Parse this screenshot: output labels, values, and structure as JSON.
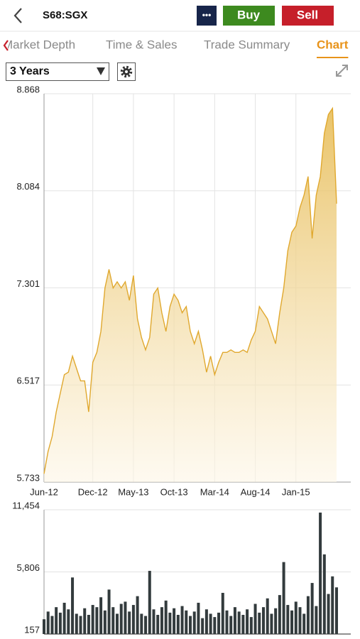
{
  "header": {
    "symbol": "S68:SGX",
    "more": "•••",
    "buy": "Buy",
    "sell": "Sell"
  },
  "tabs": [
    "Market Depth",
    "Time & Sales",
    "Trade Summary",
    "Chart"
  ],
  "active_tab": 3,
  "period": "3 Years",
  "chart_data": [
    {
      "type": "area",
      "series": [
        {
          "color": "#e0a82e",
          "values": [
            5.8,
            5.98,
            6.1,
            6.3,
            6.45,
            6.6,
            6.62,
            6.75,
            6.65,
            6.55,
            6.55,
            6.3,
            6.7,
            6.78,
            6.95,
            7.3,
            7.45,
            7.3,
            7.35,
            7.3,
            7.35,
            7.2,
            7.4,
            7.05,
            6.9,
            6.8,
            6.9,
            7.25,
            7.3,
            7.1,
            6.95,
            7.15,
            7.25,
            7.2,
            7.1,
            7.15,
            6.95,
            6.85,
            6.95,
            6.8,
            6.62,
            6.75,
            6.6,
            6.7,
            6.78,
            6.78,
            6.8,
            6.78,
            6.78,
            6.8,
            6.78,
            6.88,
            6.95,
            7.15,
            7.1,
            7.05,
            6.95,
            6.85,
            7.1,
            7.3,
            7.6,
            7.75,
            7.8,
            7.95,
            8.05,
            8.2,
            7.7,
            8.05,
            8.2,
            8.55,
            8.7,
            8.75,
            7.98
          ]
        }
      ],
      "xlim": [
        0,
        75.5
      ],
      "xticks": [
        {
          "value": 0,
          "label": "Jun-12"
        },
        {
          "value": 12,
          "label": "Dec-12"
        },
        {
          "value": 22,
          "label": "May-13"
        },
        {
          "value": 32,
          "label": "Oct-13"
        },
        {
          "value": 42,
          "label": "Mar-14"
        },
        {
          "value": 52,
          "label": "Aug-14"
        },
        {
          "value": 62,
          "label": "Jan-15"
        }
      ],
      "ylim": [
        5.733,
        8.868
      ],
      "yticks": [
        8.868,
        8.084,
        7.301,
        6.517,
        5.733
      ],
      "grid": true
    },
    {
      "type": "bar",
      "color": "#333b3d",
      "values": [
        1500,
        2200,
        1800,
        2600,
        2100,
        3000,
        2400,
        5300,
        2000,
        1800,
        2500,
        1900,
        2800,
        2600,
        3500,
        2300,
        4200,
        2600,
        2000,
        2900,
        3100,
        2200,
        2800,
        3600,
        2000,
        1800,
        5900,
        2400,
        1900,
        2600,
        3200,
        2100,
        2500,
        1900,
        2700,
        2300,
        1800,
        2200,
        3000,
        1600,
        2400,
        2000,
        1700,
        2100,
        3900,
        2300,
        1800,
        2600,
        2200,
        1900,
        2400,
        1700,
        2900,
        2100,
        2600,
        3400,
        2000,
        2500,
        3700,
        6700,
        2800,
        2300,
        3100,
        2600,
        2000,
        3600,
        4800,
        2700,
        11200,
        7400,
        3800,
        5400,
        4400
      ],
      "xlim": [
        0,
        75.5
      ],
      "ylim": [
        157,
        11454
      ],
      "yticks": [
        {
          "value": 11454,
          "label": "11,454"
        },
        {
          "value": 5806,
          "label": "5,806"
        },
        157
      ],
      "grid": true
    }
  ]
}
